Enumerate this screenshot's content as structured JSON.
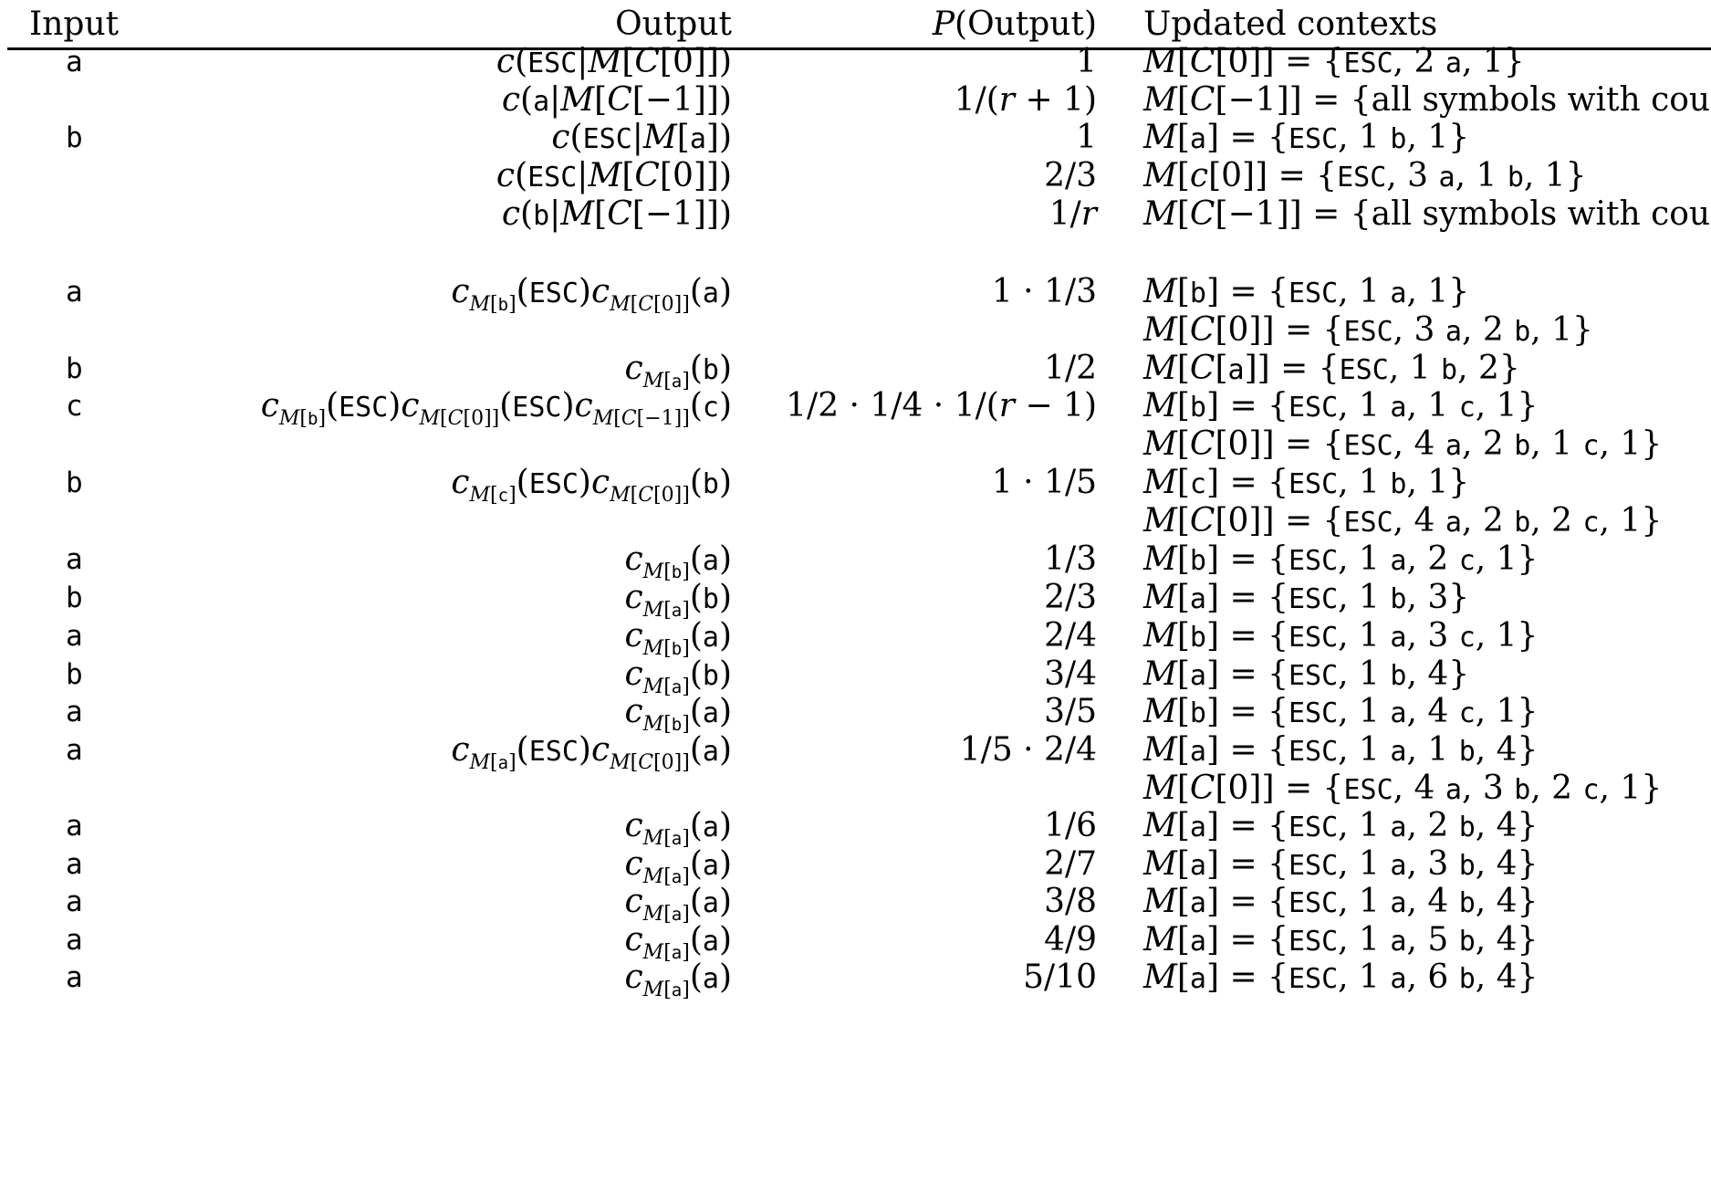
{
  "headers": {
    "input": "Input",
    "output": "Output",
    "p_output": "P(Output)",
    "updated": "Updated contexts"
  },
  "rows": [
    {
      "input": "a",
      "output": "c(ESC|M[C[0]])",
      "p": "1",
      "ctx": "M[C[0]] = {ESC, 2 a, 1}"
    },
    {
      "input": "",
      "output": "c(a|M[C[−1]])",
      "p": "1/(r + 1)",
      "ctx": "M[C[−1]] = {all symbols with cou"
    },
    {
      "input": "b",
      "output": "c(ESC|M[a])",
      "p": "1",
      "ctx": "M[a] = {ESC, 1 b, 1}"
    },
    {
      "input": "",
      "output": "c(ESC|M[C[0]])",
      "p": "2/3",
      "ctx": "M[c[0]] = {ESC, 3 a, 1 b, 1}"
    },
    {
      "input": "",
      "output": "c(b|M[C[−1]])",
      "p": "1/r",
      "ctx": "M[C[−1]] = {all symbols with cou"
    },
    {
      "input": "a",
      "output": "c_M[b](ESC)c_M[C[0]](a)",
      "p": "1 · 1/3",
      "ctx": "M[b] = {ESC, 1 a, 1}"
    },
    {
      "input": "",
      "output": "",
      "p": "",
      "ctx": "M[C[0]] = {ESC, 3 a, 2 b, 1}"
    },
    {
      "input": "b",
      "output": "c_M[a](b)",
      "p": "1/2",
      "ctx": "M[C[a]] = {ESC, 1 b, 2}"
    },
    {
      "input": "c",
      "output": "c_M[b](ESC)c_M[C[0]](ESC)c_M[C[−1]](c)",
      "p": "1/2 · 1/4 · 1/(r − 1)",
      "ctx": "M[b] = {ESC, 1 a, 1 c, 1}"
    },
    {
      "input": "",
      "output": "",
      "p": "",
      "ctx": "M[C[0]] = {ESC, 4 a, 2 b, 1 c, 1}"
    },
    {
      "input": "b",
      "output": "c_M[c](ESC)c_M[C[0]](b)",
      "p": "1 · 1/5",
      "ctx": "M[c] = {ESC, 1 b, 1}"
    },
    {
      "input": "",
      "output": "",
      "p": "",
      "ctx": "M[C[0]] = {ESC, 4 a, 2 b, 2 c, 1}"
    },
    {
      "input": "a",
      "output": "c_M[b](a)",
      "p": "1/3",
      "ctx": "M[b] = {ESC, 1 a, 2 c, 1}"
    },
    {
      "input": "b",
      "output": "c_M[a](b)",
      "p": "2/3",
      "ctx": "M[a] = {ESC, 1 b, 3}"
    },
    {
      "input": "a",
      "output": "c_M[b](a)",
      "p": "2/4",
      "ctx": "M[b] = {ESC, 1 a, 3 c, 1}"
    },
    {
      "input": "b",
      "output": "c_M[a](b)",
      "p": "3/4",
      "ctx": "M[a] = {ESC, 1 b, 4}"
    },
    {
      "input": "a",
      "output": "c_M[b](a)",
      "p": "3/5",
      "ctx": "M[b] = {ESC, 1 a, 4 c, 1}"
    },
    {
      "input": "a",
      "output": "c_M[a](ESC)c_M[C[0]](a)",
      "p": "1/5 · 2/4",
      "ctx": "M[a] = {ESC, 1 a, 1 b, 4}"
    },
    {
      "input": "",
      "output": "",
      "p": "",
      "ctx": "M[C[0]] = {ESC, 4 a, 3 b, 2 c, 1}"
    },
    {
      "input": "a",
      "output": "c_M[a](a)",
      "p": "1/6",
      "ctx": "M[a] = {ESC, 1 a, 2 b, 4}"
    },
    {
      "input": "a",
      "output": "c_M[a](a)",
      "p": "2/7",
      "ctx": "M[a] = {ESC, 1 a, 3 b, 4}"
    },
    {
      "input": "a",
      "output": "c_M[a](a)",
      "p": "3/8",
      "ctx": "M[a] = {ESC, 1 a, 4 b, 4}"
    },
    {
      "input": "a",
      "output": "c_M[a](a)",
      "p": "4/9",
      "ctx": "M[a] = {ESC, 1 a, 5 b, 4}"
    },
    {
      "input": "a",
      "output": "c_M[a](a)",
      "p": "5/10",
      "ctx": "M[a] = {ESC, 1 a, 6 b, 4}"
    }
  ]
}
